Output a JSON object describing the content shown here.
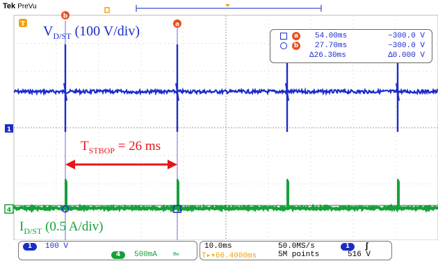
{
  "topbar": {
    "brand": "Tek",
    "mode": "PreVu"
  },
  "markers": {
    "channel_1": "1",
    "channel_4": "4",
    "trigger_position": "T",
    "cursor_a": "a",
    "cursor_b": "b"
  },
  "annotations": {
    "v_label_main": "V",
    "v_label_sub": "D/ST",
    "v_label_scale": " (100 V/div)",
    "i_label_main": "I",
    "i_label_sub": "D/ST",
    "i_label_scale": " (0.5 A/div)",
    "t_label_main": "T",
    "t_label_sub": "STBOP",
    "t_label_value": " = 26 ms"
  },
  "cursor_readout": {
    "a_time": "54.00ms",
    "a_volt": "−300.0 V",
    "b_time": "27.70ms",
    "b_volt": "−300.0 V",
    "delta_time": "Δ26.30ms",
    "delta_volt": "Δ0.000 V"
  },
  "bottom": {
    "ch1_badge": "1",
    "ch1_scale": "100 V",
    "ch4_badge": "4",
    "ch4_scale": "500mA",
    "ch4_bw": "Bw",
    "timebase": "10.0ms",
    "sample_rate": "50.0MS/s",
    "trig_offset": "T▸▾66.4000ms",
    "record_length": "5M points",
    "trig_badge": "1",
    "trig_slope": "ʃ",
    "trig_level": "516 V"
  },
  "colors": {
    "ch1": "#1a2cc8",
    "ch4": "#17a03a",
    "cursor": "#e8501a",
    "trigger": "#f2a10a",
    "annotation": "#e8141a"
  },
  "icons": {
    "trigger_marker": "trigger-orange-icon",
    "cursor_a": "cursor-a-icon",
    "cursor_b": "cursor-b-icon",
    "slope": "rising-edge-icon"
  }
}
